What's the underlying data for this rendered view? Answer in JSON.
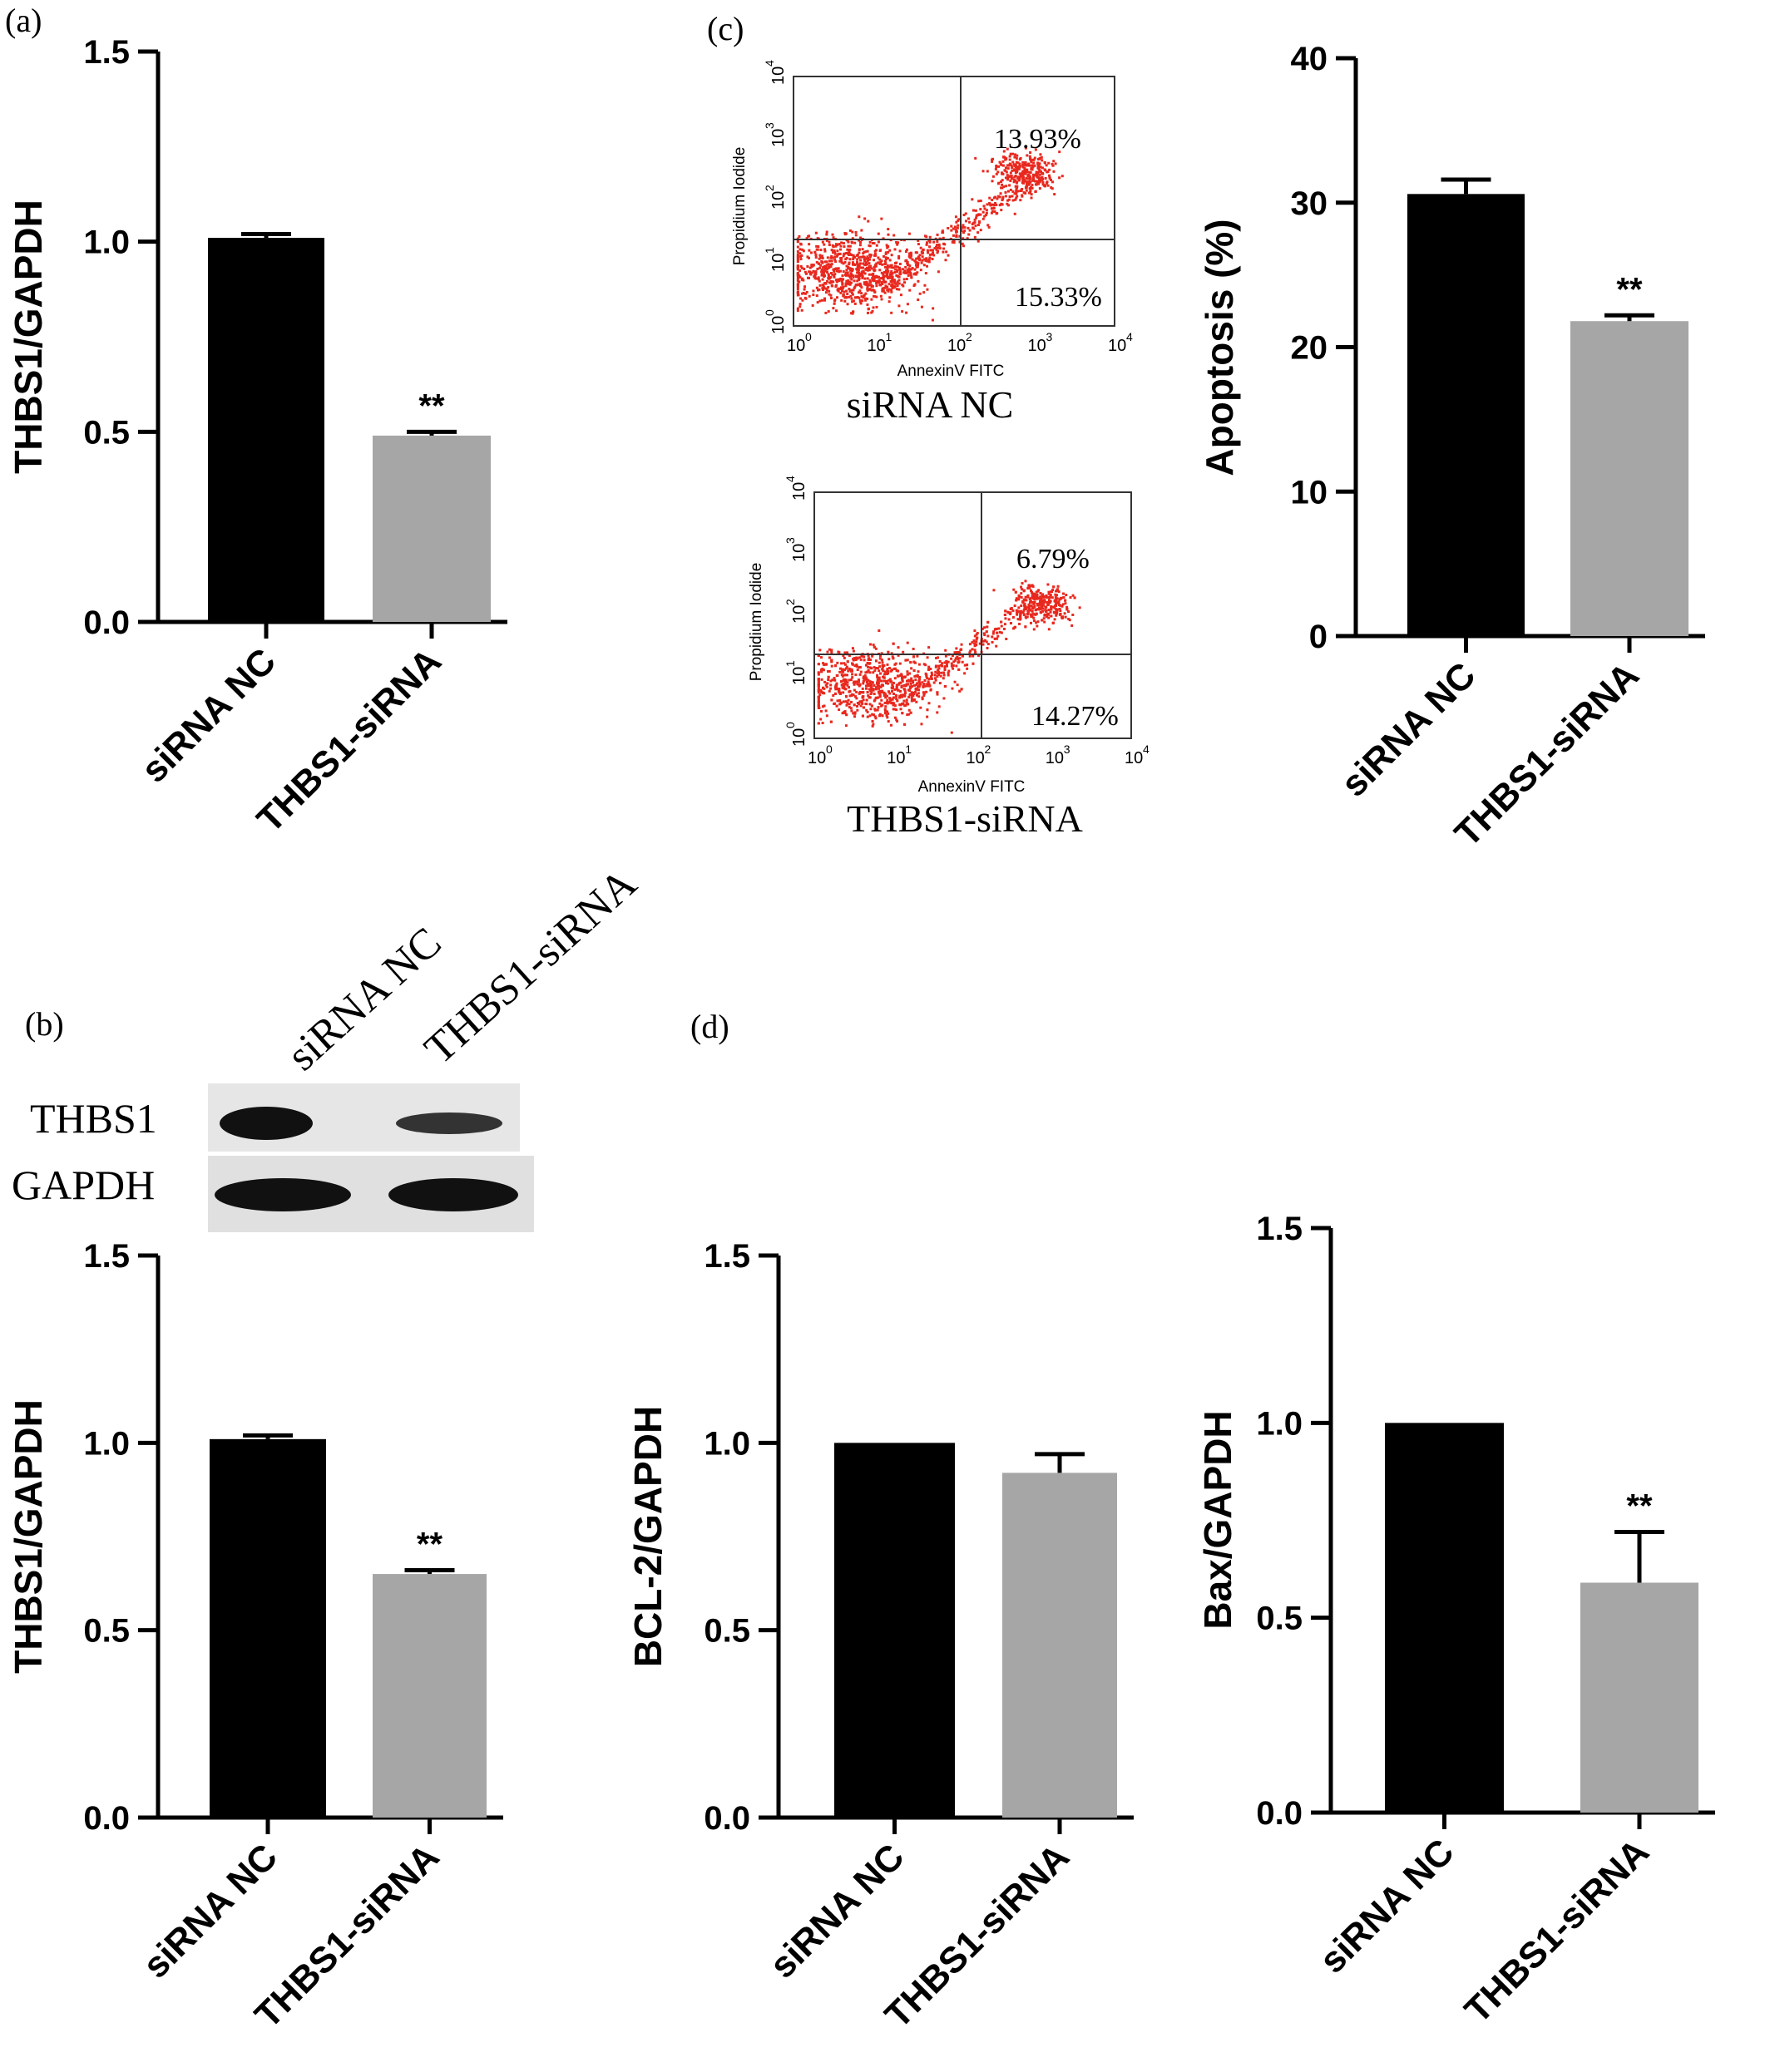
{
  "panels": {
    "a": "(a)",
    "b": "(b)",
    "c": "(c)",
    "d": "(d)"
  },
  "colors": {
    "bar_nc": "#000000",
    "bar_si": "#a6a6a6",
    "dots": "#e8281e",
    "axis": "#000000"
  },
  "blot": {
    "lane_labels": [
      "siRNA NC",
      "THBS1-siRNA"
    ],
    "rows": [
      "THBS1",
      "GAPDH"
    ]
  },
  "flow": [
    {
      "name": "siRNA NC",
      "xlabel": "AnnexinV FITC",
      "ylabel": "Propidium Iodide",
      "upper_right": "13.93%",
      "lower_right": "15.33%"
    },
    {
      "name": "THBS1-siRNA",
      "xlabel": "AnnexinV FITC",
      "ylabel": "Propidium Iodide",
      "upper_right": "6.79%",
      "lower_right": "14.27%"
    }
  ],
  "chart_data": [
    {
      "id": "a",
      "type": "bar",
      "categories": [
        "siRNA NC",
        "THBS1-siRNA"
      ],
      "values": [
        1.01,
        0.49
      ],
      "errors": [
        0.01,
        0.01
      ],
      "significance": [
        "",
        "**"
      ],
      "ylabel": "THBS1/GAPDH",
      "ylim": [
        0,
        1.5
      ],
      "yticks": [
        "0.0",
        "0.5",
        "1.0",
        "1.5"
      ]
    },
    {
      "id": "c",
      "type": "bar",
      "categories": [
        "siRNA NC",
        "THBS1-siRNA"
      ],
      "values": [
        30.6,
        21.8
      ],
      "errors": [
        1.0,
        0.4
      ],
      "significance": [
        "",
        "**"
      ],
      "ylabel": "Apoptosis (%)",
      "ylim": [
        0,
        40
      ],
      "yticks": [
        "0",
        "10",
        "20",
        "30",
        "40"
      ]
    },
    {
      "id": "b",
      "type": "bar",
      "categories": [
        "siRNA NC",
        "THBS1-siRNA"
      ],
      "values": [
        1.01,
        0.65
      ],
      "errors": [
        0.01,
        0.01
      ],
      "significance": [
        "",
        "**"
      ],
      "ylabel": "THBS1/GAPDH",
      "ylim": [
        0,
        1.5
      ],
      "yticks": [
        "0.0",
        "0.5",
        "1.0",
        "1.5"
      ]
    },
    {
      "id": "d1",
      "type": "bar",
      "categories": [
        "siRNA NC",
        "THBS1-siRNA"
      ],
      "values": [
        1.0,
        0.92
      ],
      "errors": [
        0,
        0.05
      ],
      "significance": [
        "",
        ""
      ],
      "ylabel": "BCL-2/GAPDH",
      "ylim": [
        0,
        1.5
      ],
      "yticks": [
        "0.0",
        "0.5",
        "1.0",
        "1.5"
      ]
    },
    {
      "id": "d2",
      "type": "bar",
      "categories": [
        "siRNA NC",
        "THBS1-siRNA"
      ],
      "values": [
        1.0,
        0.59
      ],
      "errors": [
        0,
        0.13
      ],
      "significance": [
        "",
        "**"
      ],
      "ylabel": "Bax/GAPDH",
      "ylim": [
        0,
        1.5
      ],
      "yticks": [
        "0.0",
        "0.5",
        "1.0",
        "1.5"
      ]
    }
  ]
}
